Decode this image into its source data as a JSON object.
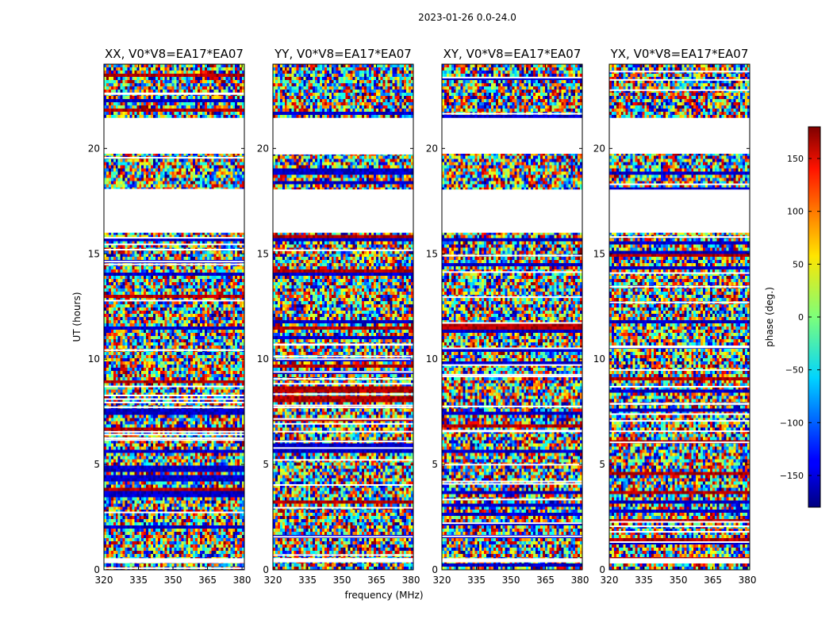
{
  "figure": {
    "suptitle": "2023-01-26 0.0-24.0"
  },
  "chart_data": {
    "type": "heatmap",
    "panels": [
      {
        "title": "XX, V0*V8=EA17*EA07",
        "base_hue": "xx"
      },
      {
        "title": "YY, V0*V8=EA17*EA07",
        "base_hue": "yy"
      },
      {
        "title": "XY, V0*V8=EA17*EA07",
        "base_hue": "xy"
      },
      {
        "title": "YX, V0*V8=EA17*EA07",
        "base_hue": "yx"
      }
    ],
    "xlabel": "frequency (MHz)",
    "ylabel": "UT (hours)",
    "xlim": [
      320,
      381
    ],
    "ylim": [
      0,
      24
    ],
    "x_ticks": [
      320,
      335,
      350,
      365,
      380
    ],
    "y_ticks": [
      0,
      5,
      10,
      15,
      20
    ],
    "gaps_hours": [
      [
        21.45,
        19.75
      ],
      [
        18.05,
        16.0
      ],
      [
        0.55,
        0.35
      ]
    ],
    "colorbar": {
      "label": "phase (deg.)",
      "range": [
        -180,
        180
      ],
      "ticks": [
        150,
        100,
        50,
        0,
        -50,
        -100,
        -150
      ],
      "colormap": "jet"
    }
  }
}
